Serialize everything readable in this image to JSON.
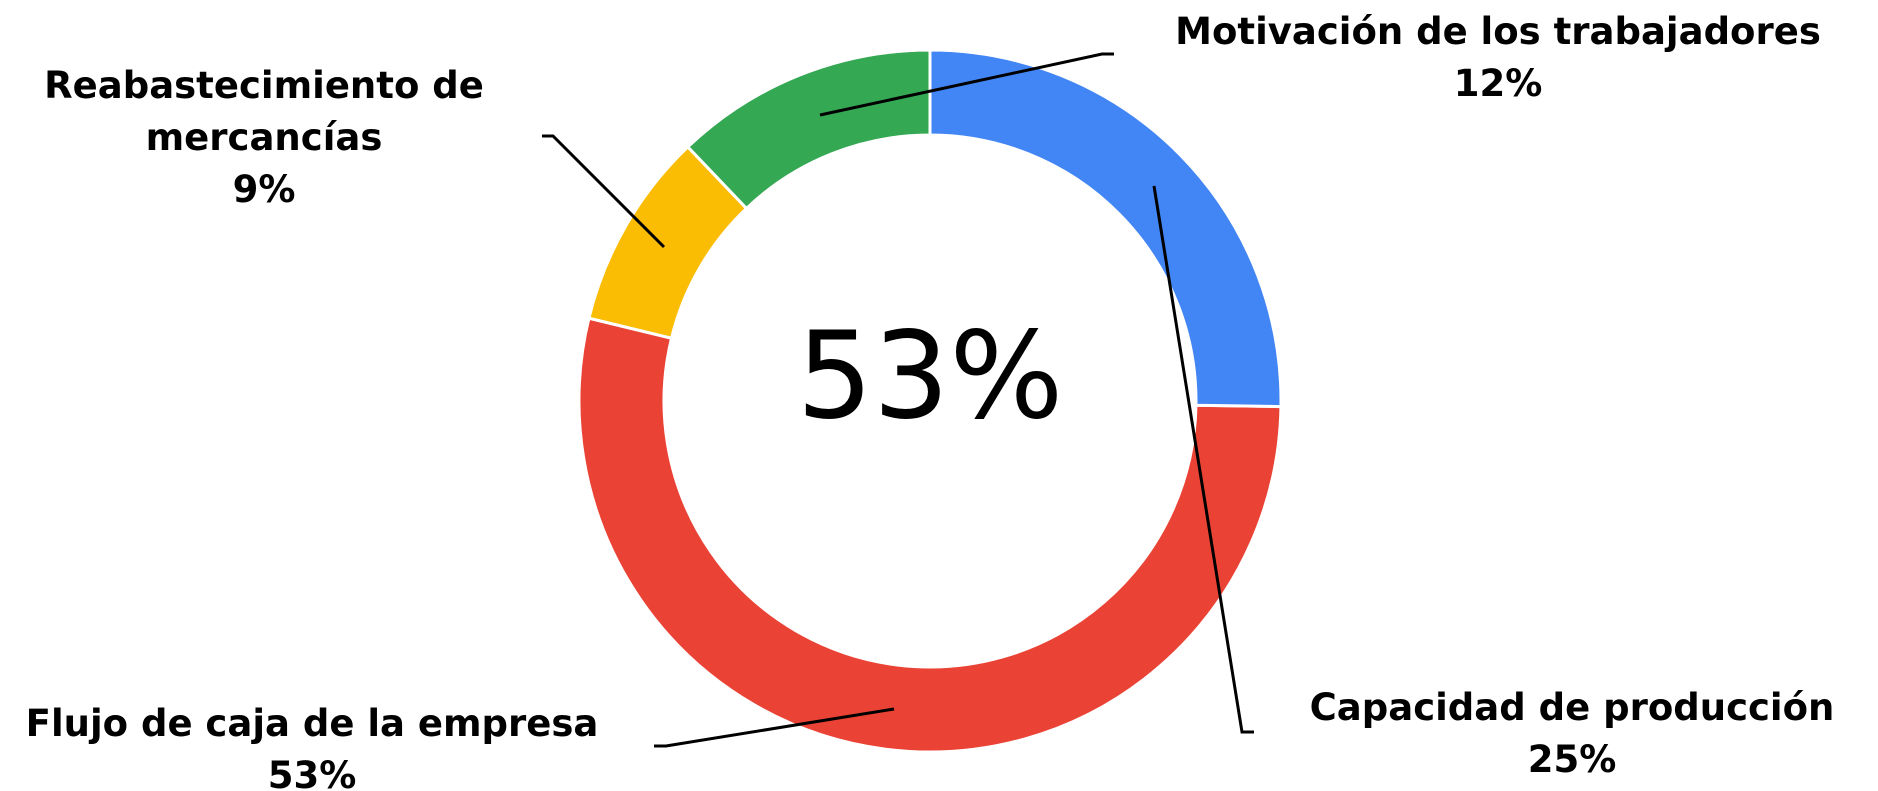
{
  "chart_data": {
    "type": "donut",
    "categories": [
      "Capacidad de producción",
      "Flujo de caja de la empresa",
      "Reabastecimiento de mercancías",
      "Motivación de los trabajadores"
    ],
    "values": [
      25,
      53,
      9,
      12
    ],
    "value_labels": [
      "25%",
      "53%",
      "9%",
      "12%"
    ],
    "colors": [
      "#4285f4",
      "#ea4335",
      "#fbbc04",
      "#34a853"
    ],
    "center_label": "53%"
  }
}
